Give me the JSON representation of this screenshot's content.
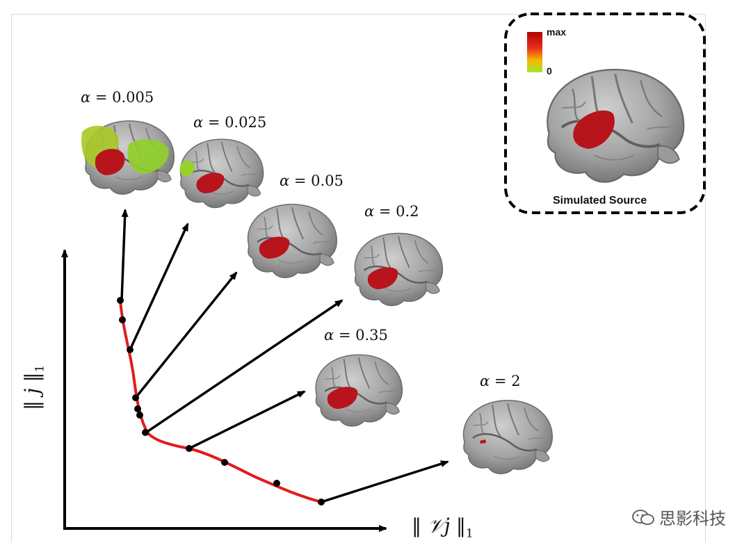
{
  "alpha_symbol": "α",
  "alpha_labels": [
    {
      "id": "a1",
      "text": "= 0.005"
    },
    {
      "id": "a2",
      "text": "= 0.025"
    },
    {
      "id": "a3",
      "text": "= 0.05"
    },
    {
      "id": "a4",
      "text": "= 0.2"
    },
    {
      "id": "a5",
      "text": "= 0.35"
    },
    {
      "id": "a6",
      "text": "= 2"
    }
  ],
  "axes": {
    "y_label_prefix": "‖",
    "y_symbol": "ȷ̇",
    "y_label_suffix": "‖",
    "y_subscript": "1",
    "x_label_prefix": "‖",
    "x_symbol": "𝒱ȷ̇",
    "x_label_suffix": "‖",
    "x_subscript": "1"
  },
  "inset": {
    "caption": "Simulated Source",
    "colorbar_max": "max",
    "colorbar_min": "0"
  },
  "watermark": "思影科技",
  "colors": {
    "curve": "#e31b1b",
    "brain": "#9e9e9e",
    "activation": "#b8141c",
    "spread": "#a6d320"
  }
}
